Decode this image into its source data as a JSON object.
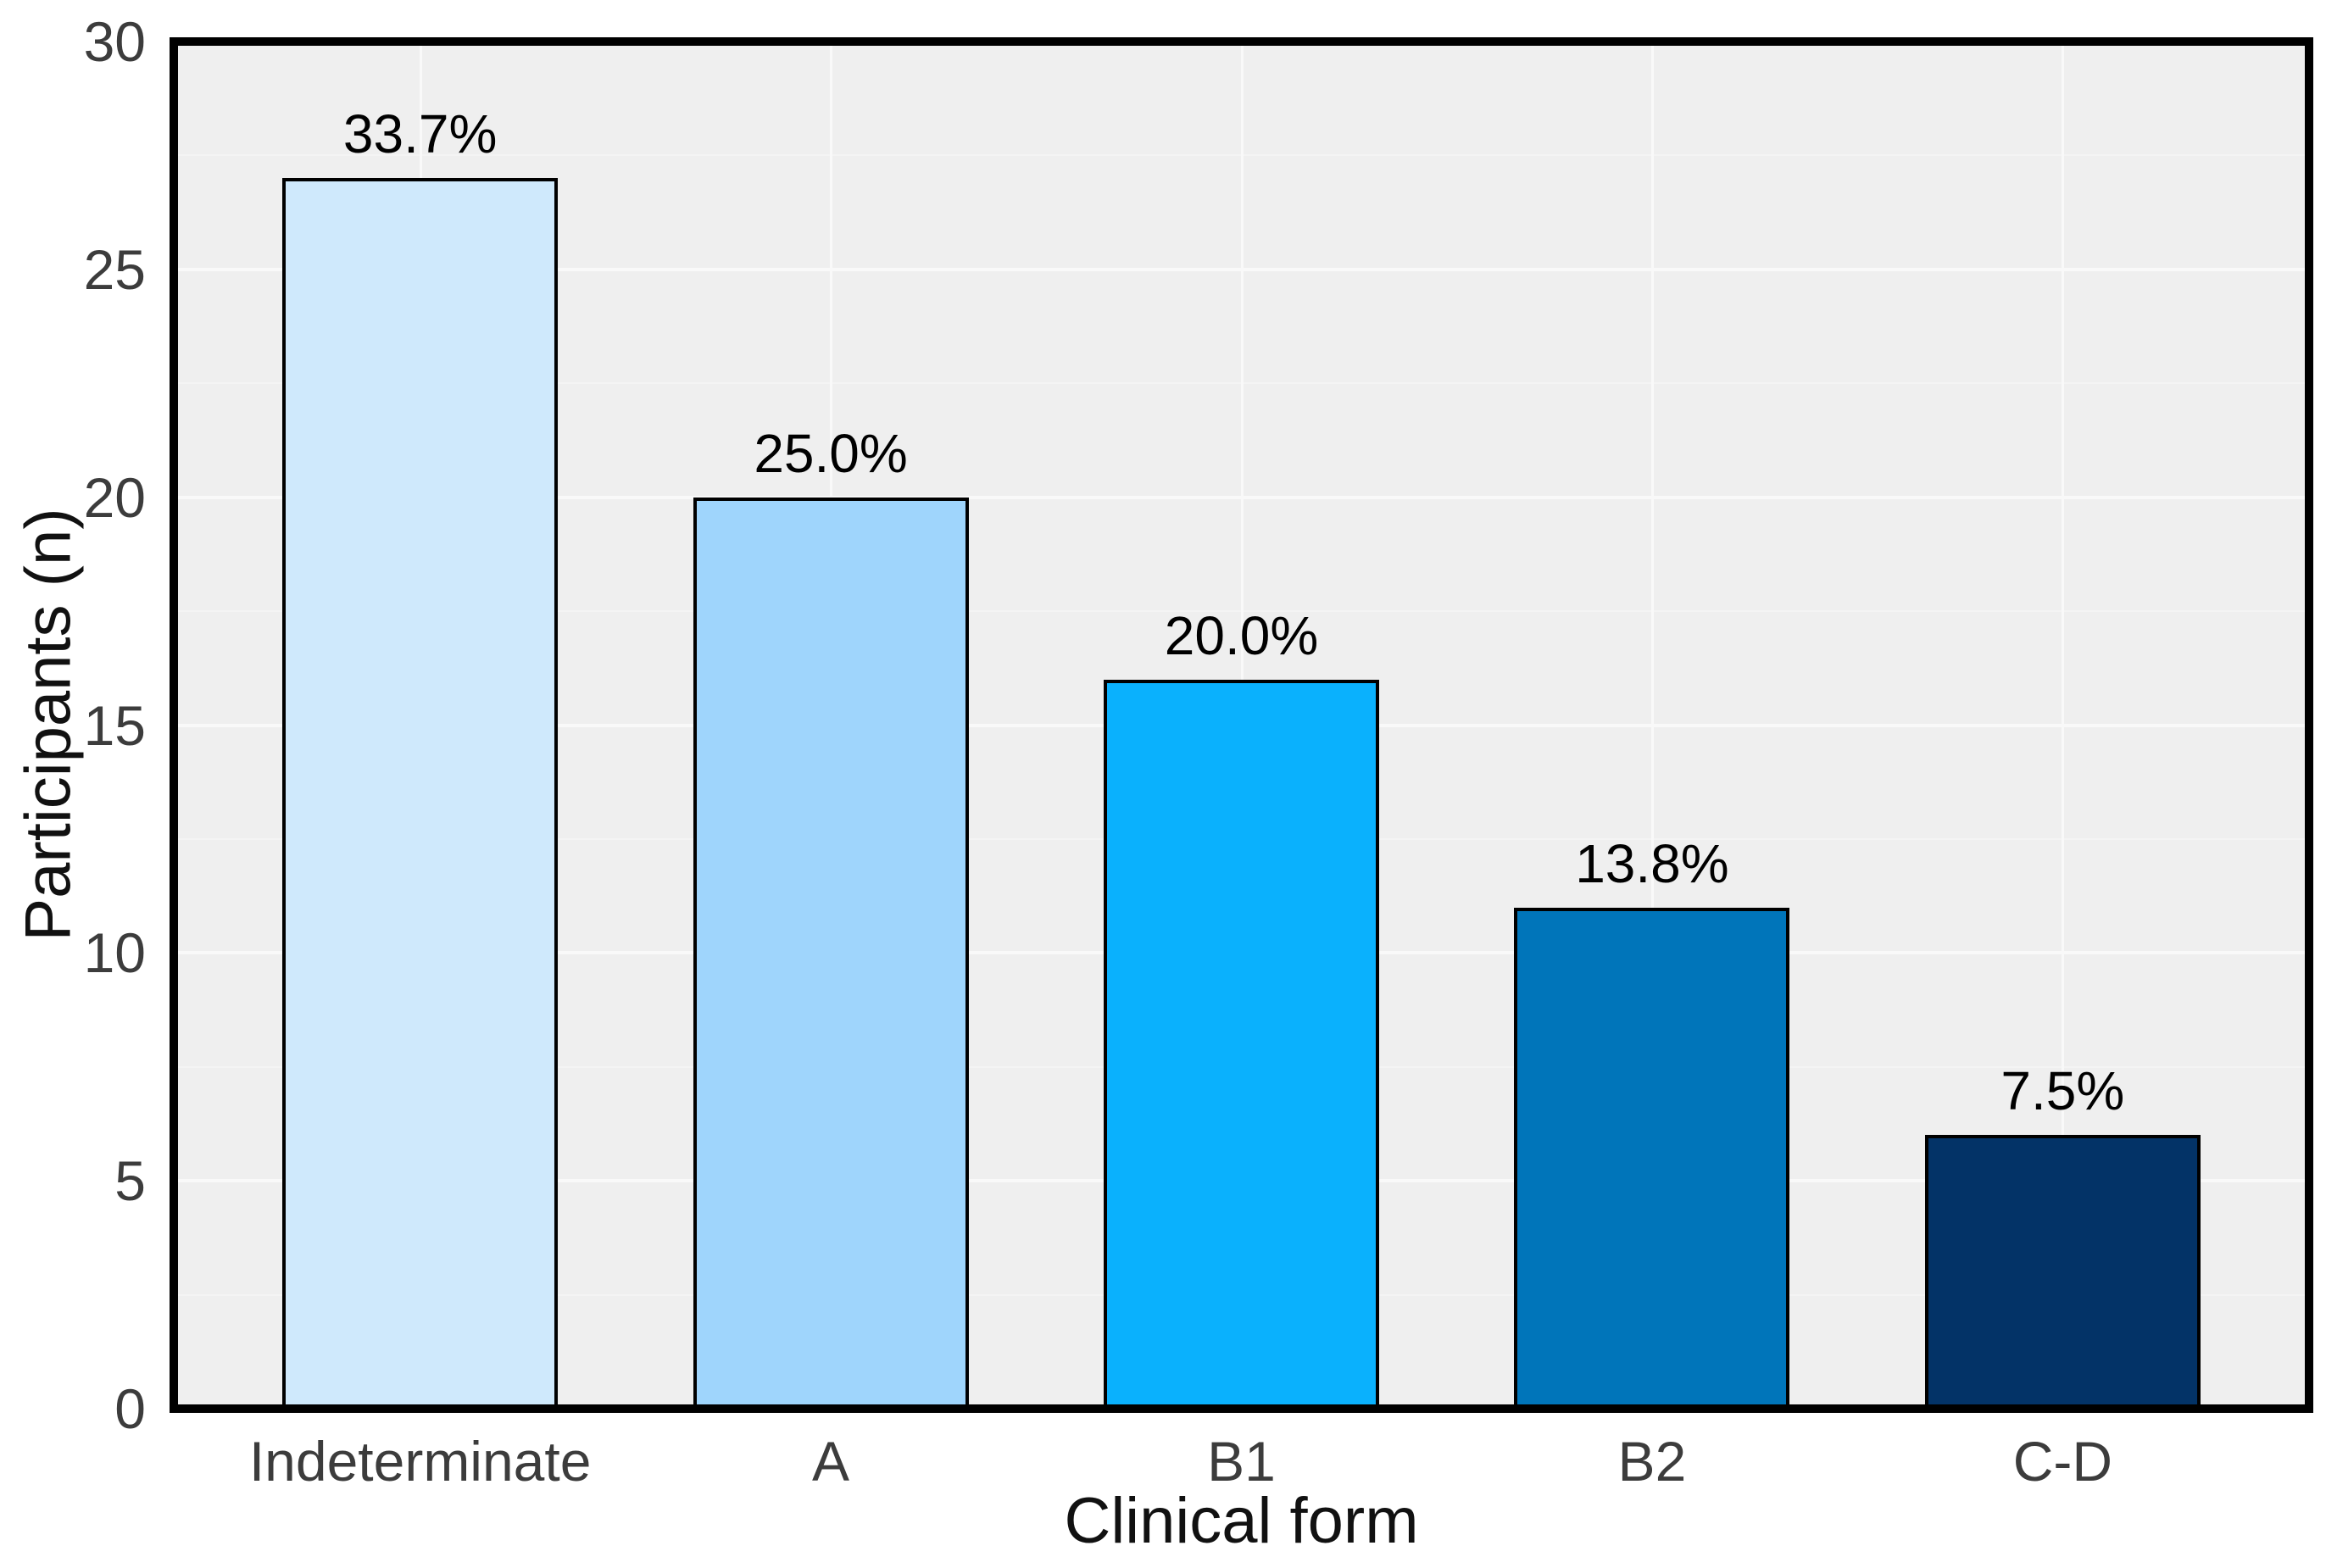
{
  "figure": {
    "background": "#ffffff",
    "panel_background": "#efefef",
    "grid_major_color": "#f9f9f9",
    "grid_minor_color": "#f4f4f4",
    "panel_border_color": "#000000",
    "bar_border_color": "#000000",
    "tick_label_color": "#3c3c3c",
    "axis_title_color": "#111111",
    "bar_value_label_color": "#000000"
  },
  "chart_data": {
    "type": "bar",
    "title": "",
    "xlabel": "Clinical form",
    "ylabel": "Participants (n)",
    "categories": [
      "Indeterminate",
      "A",
      "B1",
      "B2",
      "C-D"
    ],
    "values": [
      27,
      20,
      16,
      11,
      6
    ],
    "bar_labels": [
      "33.7%",
      "25.0%",
      "20.0%",
      "13.8%",
      "7.5%"
    ],
    "bar_colors": [
      "#cfe9fc",
      "#9fd5fc",
      "#0ab1fd",
      "#0075ba",
      "#033367"
    ],
    "ylim": [
      0,
      30
    ],
    "yticks": [
      0,
      5,
      10,
      15,
      20,
      25,
      30
    ],
    "yticks_minor": [
      2.5,
      7.5,
      12.5,
      17.5,
      22.5,
      27.5
    ],
    "grid": "major and minor horizontal, major vertical at category centers",
    "legend": "none"
  }
}
